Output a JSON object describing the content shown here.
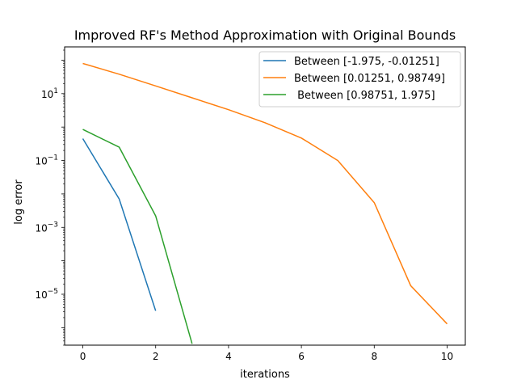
{
  "chart_data": {
    "type": "line",
    "title": "Improved RF's Method Approximation with Original Bounds",
    "xlabel": "iterations",
    "ylabel": "log error",
    "y_scale": "log",
    "xlim": [
      -0.5,
      10.5
    ],
    "ylim": [
      3e-07,
      250
    ],
    "x_ticks": [
      0,
      2,
      4,
      6,
      8,
      10
    ],
    "y_ticks": [
      {
        "value": 1e-05,
        "mantissa": "10",
        "exponent": "−5"
      },
      {
        "value": 0.001,
        "mantissa": "10",
        "exponent": "−3"
      },
      {
        "value": 0.1,
        "mantissa": "10",
        "exponent": "−1"
      },
      {
        "value": 10,
        "mantissa": "10",
        "exponent": "1"
      }
    ],
    "grid": false,
    "legend_position": "top-right",
    "series": [
      {
        "name": "Between [-1.975, -0.01251]",
        "color": "#1f77b4",
        "x": [
          0,
          1,
          2
        ],
        "values": [
          0.45,
          0.007,
          3.2e-06
        ]
      },
      {
        "name": "Between [0.01251, 0.98749]",
        "color": "#ff7f0e",
        "x": [
          0,
          1,
          2,
          3,
          4,
          5,
          6,
          7,
          8,
          9,
          10
        ],
        "values": [
          80,
          38,
          17,
          7.5,
          3.3,
          1.35,
          0.47,
          0.1,
          0.0055,
          1.8e-05,
          1.3e-06
        ]
      },
      {
        "name": " Between [0.98751, 1.975]",
        "color": "#2ca02c",
        "x": [
          0,
          1,
          2,
          3
        ],
        "values": [
          0.85,
          0.25,
          0.0022,
          3.3e-07
        ]
      }
    ]
  }
}
